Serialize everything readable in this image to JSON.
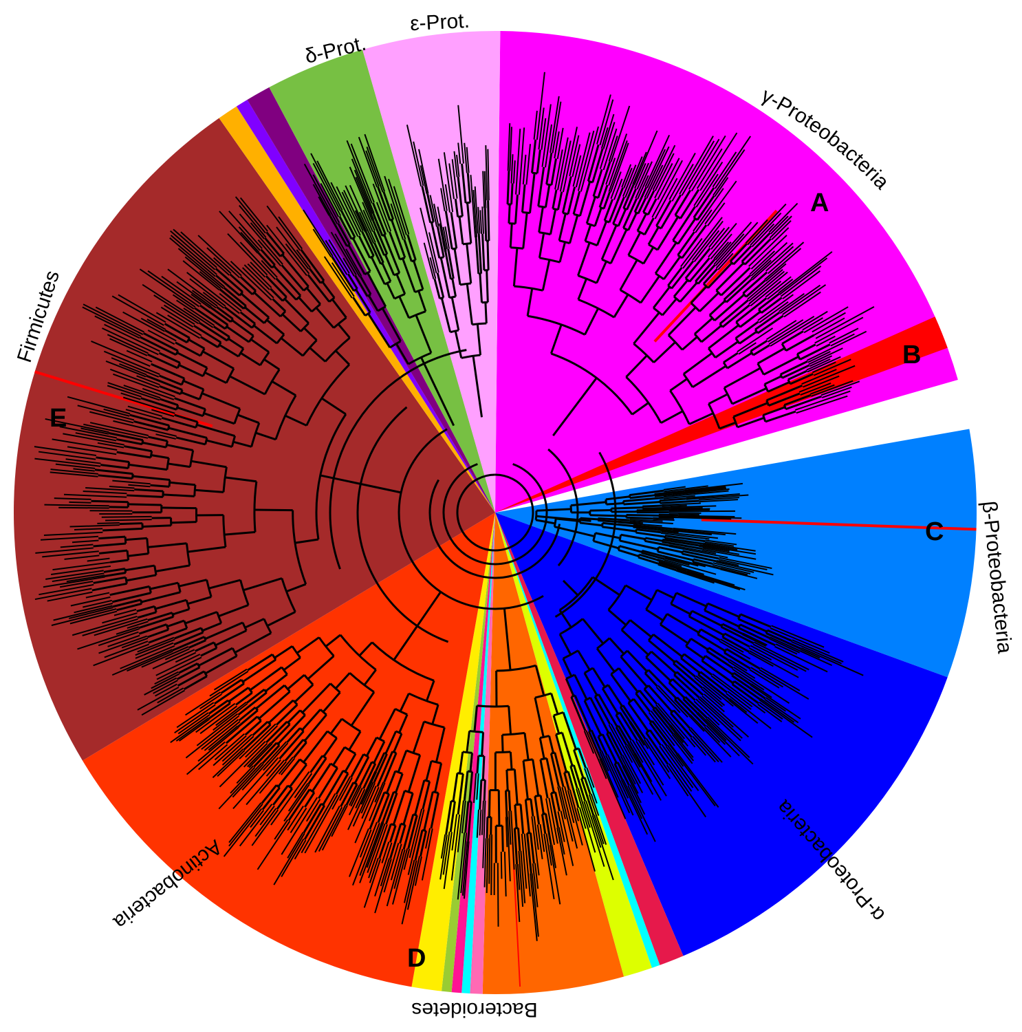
{
  "diagram": {
    "type": "circular-phylogenetic-tree",
    "colors": {
      "gamma": "#ff00ff",
      "beta": "#0080ff",
      "alpha": "#0000ff",
      "bacteroidetes": "#ff6600",
      "actinobacteria": "#ff3300",
      "firmicutes": "#a52a2a",
      "delta": "#77c043",
      "epsilon": "#ffa0ff",
      "highlight": "#ff0000",
      "minor_purple": "#800080",
      "minor_violet": "#8000ff",
      "minor_amber": "#ffb000",
      "minor_yellow": "#ffee00",
      "minor_olive": "#99cc33",
      "minor_pink": "#ff1493",
      "minor_cyan": "#00ffff",
      "minor_rose": "#ff69b4",
      "minor_lime": "#ddff00",
      "minor_crimson": "#e6194b",
      "branches": "#000000"
    },
    "clade_labels": [
      {
        "id": "gamma",
        "text": "γ-Proteobacteria"
      },
      {
        "id": "beta",
        "text": "β-Proteobacteria"
      },
      {
        "id": "alpha",
        "text": "α-Proteobacteria"
      },
      {
        "id": "bacteroidetes",
        "text": "Bacteroidetes"
      },
      {
        "id": "actinobacteria",
        "text": "Actinobacteria"
      },
      {
        "id": "firmicutes",
        "text": "Firmicutes"
      },
      {
        "id": "delta",
        "text": "δ-Prot."
      },
      {
        "id": "epsilon",
        "text": "ε-Prot."
      }
    ],
    "markers": [
      {
        "id": "A",
        "text": "A"
      },
      {
        "id": "B",
        "text": "B"
      },
      {
        "id": "C",
        "text": "C"
      },
      {
        "id": "D",
        "text": "D"
      },
      {
        "id": "E",
        "text": "E"
      }
    ]
  }
}
